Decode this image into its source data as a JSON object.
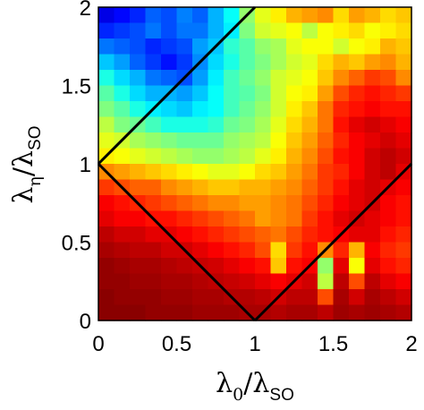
{
  "chart_data": {
    "type": "heatmap",
    "title": "",
    "xlabel": {
      "base": "λ",
      "sub": "0",
      "sep": "/",
      "base2": "λ",
      "sub2": "SO"
    },
    "ylabel": {
      "base": "λ",
      "sub": "η",
      "sep": "/",
      "base2": "λ",
      "sub2": "SO"
    },
    "xlim": [
      0,
      2
    ],
    "ylim": [
      0,
      2
    ],
    "x_ticks": [
      "0",
      "0.5",
      "1",
      "1.5",
      "2"
    ],
    "y_ticks": [
      "0",
      "0.5",
      "1",
      "1.5",
      "2"
    ],
    "colormap": "jet",
    "value_range": [
      0,
      1
    ],
    "grid_x_centers": [
      0.0,
      0.1,
      0.2,
      0.3,
      0.4,
      0.5,
      0.6,
      0.7,
      0.8,
      0.9,
      1.0,
      1.1,
      1.2,
      1.3,
      1.4,
      1.5,
      1.6,
      1.7,
      1.8,
      1.9
    ],
    "grid_y_centers": [
      0.0,
      0.1,
      0.2,
      0.3,
      0.4,
      0.5,
      0.6,
      0.7,
      0.8,
      0.9,
      1.0,
      1.1,
      1.2,
      1.3,
      1.4,
      1.5,
      1.6,
      1.7,
      1.8,
      1.9
    ],
    "cell_size": 0.1,
    "values_note_rows": "rows ordered from top (lambda_eta high) to bottom (lambda_eta low), values are normalized color levels 0..1",
    "values": [
      [
        0.1,
        0.13,
        0.16,
        0.22,
        0.2,
        0.25,
        0.22,
        0.3,
        0.38,
        0.52,
        0.6,
        0.64,
        0.7,
        0.72,
        0.74,
        0.66,
        0.72,
        0.7,
        0.66,
        0.68
      ],
      [
        0.16,
        0.18,
        0.2,
        0.24,
        0.2,
        0.24,
        0.24,
        0.3,
        0.36,
        0.5,
        0.58,
        0.6,
        0.62,
        0.56,
        0.62,
        0.64,
        0.66,
        0.62,
        0.64,
        0.66
      ],
      [
        0.24,
        0.22,
        0.2,
        0.16,
        0.18,
        0.2,
        0.28,
        0.32,
        0.42,
        0.46,
        0.52,
        0.54,
        0.6,
        0.62,
        0.62,
        0.58,
        0.62,
        0.64,
        0.7,
        0.68
      ],
      [
        0.32,
        0.28,
        0.22,
        0.18,
        0.14,
        0.18,
        0.26,
        0.34,
        0.4,
        0.46,
        0.5,
        0.54,
        0.58,
        0.6,
        0.66,
        0.7,
        0.68,
        0.72,
        0.74,
        0.7
      ],
      [
        0.4,
        0.34,
        0.3,
        0.24,
        0.22,
        0.2,
        0.28,
        0.36,
        0.44,
        0.48,
        0.52,
        0.58,
        0.6,
        0.62,
        0.68,
        0.74,
        0.78,
        0.82,
        0.8,
        0.74
      ],
      [
        0.46,
        0.4,
        0.34,
        0.3,
        0.3,
        0.28,
        0.32,
        0.38,
        0.44,
        0.46,
        0.5,
        0.58,
        0.62,
        0.64,
        0.72,
        0.8,
        0.84,
        0.86,
        0.84,
        0.82
      ],
      [
        0.5,
        0.46,
        0.4,
        0.36,
        0.34,
        0.32,
        0.36,
        0.38,
        0.44,
        0.48,
        0.52,
        0.58,
        0.64,
        0.68,
        0.76,
        0.84,
        0.86,
        0.88,
        0.86,
        0.86
      ],
      [
        0.56,
        0.5,
        0.48,
        0.44,
        0.4,
        0.4,
        0.4,
        0.42,
        0.48,
        0.5,
        0.54,
        0.6,
        0.66,
        0.7,
        0.76,
        0.86,
        0.9,
        0.92,
        0.9,
        0.88
      ],
      [
        0.6,
        0.58,
        0.54,
        0.52,
        0.5,
        0.48,
        0.48,
        0.48,
        0.52,
        0.54,
        0.56,
        0.62,
        0.68,
        0.72,
        0.78,
        0.84,
        0.88,
        0.9,
        0.92,
        0.9
      ],
      [
        0.64,
        0.62,
        0.6,
        0.58,
        0.56,
        0.54,
        0.52,
        0.52,
        0.54,
        0.56,
        0.6,
        0.64,
        0.7,
        0.74,
        0.8,
        0.86,
        0.88,
        0.92,
        0.94,
        0.92
      ],
      [
        0.74,
        0.72,
        0.7,
        0.68,
        0.66,
        0.64,
        0.62,
        0.6,
        0.6,
        0.62,
        0.66,
        0.68,
        0.72,
        0.76,
        0.82,
        0.84,
        0.88,
        0.92,
        0.94,
        0.9
      ],
      [
        0.82,
        0.8,
        0.78,
        0.78,
        0.74,
        0.72,
        0.7,
        0.68,
        0.68,
        0.7,
        0.7,
        0.72,
        0.74,
        0.78,
        0.82,
        0.86,
        0.9,
        0.92,
        0.9,
        0.88
      ],
      [
        0.88,
        0.86,
        0.84,
        0.82,
        0.8,
        0.78,
        0.76,
        0.74,
        0.74,
        0.72,
        0.72,
        0.74,
        0.76,
        0.8,
        0.84,
        0.88,
        0.9,
        0.92,
        0.88,
        0.86
      ],
      [
        0.9,
        0.88,
        0.88,
        0.86,
        0.86,
        0.84,
        0.82,
        0.8,
        0.78,
        0.76,
        0.72,
        0.74,
        0.76,
        0.82,
        0.86,
        0.9,
        0.92,
        0.9,
        0.88,
        0.86
      ],
      [
        0.94,
        0.92,
        0.92,
        0.9,
        0.9,
        0.88,
        0.86,
        0.84,
        0.82,
        0.8,
        0.78,
        0.76,
        0.8,
        0.84,
        0.86,
        0.88,
        0.9,
        0.9,
        0.86,
        0.84
      ],
      [
        0.96,
        0.95,
        0.94,
        0.94,
        0.92,
        0.92,
        0.9,
        0.88,
        0.86,
        0.84,
        0.8,
        0.66,
        0.82,
        0.86,
        0.74,
        0.84,
        0.7,
        0.88,
        0.84,
        0.82
      ],
      [
        0.98,
        0.97,
        0.96,
        0.96,
        0.95,
        0.94,
        0.93,
        0.92,
        0.9,
        0.88,
        0.86,
        0.68,
        0.86,
        0.88,
        0.52,
        0.9,
        0.62,
        0.9,
        0.86,
        0.84
      ],
      [
        0.98,
        0.98,
        0.97,
        0.97,
        0.96,
        0.96,
        0.95,
        0.94,
        0.93,
        0.92,
        0.9,
        0.88,
        0.9,
        0.92,
        0.56,
        0.94,
        0.8,
        0.94,
        0.9,
        0.88
      ],
      [
        0.99,
        0.98,
        0.98,
        0.98,
        0.97,
        0.97,
        0.96,
        0.96,
        0.95,
        0.95,
        0.94,
        0.92,
        0.94,
        0.94,
        0.8,
        0.96,
        0.92,
        0.96,
        0.94,
        0.92
      ],
      [
        0.99,
        0.99,
        0.99,
        0.98,
        0.98,
        0.98,
        0.97,
        0.97,
        0.97,
        0.96,
        0.96,
        0.95,
        0.96,
        0.96,
        0.94,
        0.97,
        0.96,
        0.97,
        0.96,
        0.95
      ]
    ],
    "overlay_lines": [
      {
        "name": "",
        "points": [
          [
            0,
            1
          ],
          [
            1,
            2
          ]
        ],
        "color": "#000000"
      },
      {
        "name": "",
        "points": [
          [
            0,
            1
          ],
          [
            1,
            0
          ]
        ],
        "color": "#000000"
      },
      {
        "name": "",
        "points": [
          [
            1,
            0
          ],
          [
            2,
            1
          ]
        ],
        "color": "#000000"
      }
    ],
    "grid": false,
    "legend": "none"
  }
}
